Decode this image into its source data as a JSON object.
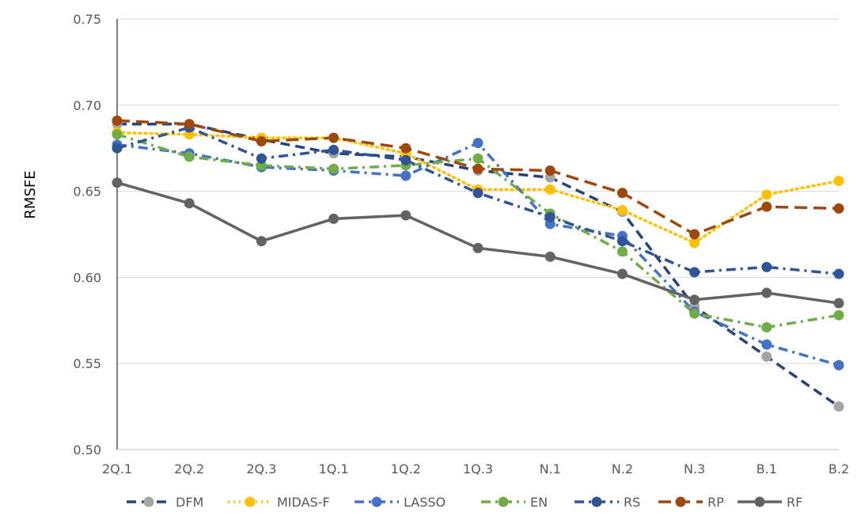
{
  "chart_data": {
    "type": "line",
    "title": "",
    "xlabel": "",
    "ylabel": "RMSFE",
    "categories": [
      "2Q.1",
      "2Q.2",
      "2Q.3",
      "1Q.1",
      "1Q.2",
      "1Q.3",
      "N.1",
      "N.2",
      "N.3",
      "B.1",
      "B.2"
    ],
    "ylim": [
      0.5,
      0.75
    ],
    "yticks": [
      "0.50",
      "0.55",
      "0.60",
      "0.65",
      "0.70",
      "0.75"
    ],
    "grid": "horizontal",
    "legend": "bottom",
    "series": [
      {
        "name": "DFM",
        "color": "#A5A5A5",
        "line_color": "#264478",
        "dash": "dashed",
        "marker_color": "#A5A5A5",
        "values": [
          0.689,
          0.689,
          0.68,
          0.672,
          0.67,
          0.662,
          0.658,
          0.638,
          0.583,
          0.554,
          0.525
        ]
      },
      {
        "name": "MIDAS-F",
        "color": "#FFC000",
        "line_color": "#FFC000",
        "dash": "dotted",
        "marker_color": "#FFC000",
        "values": [
          0.684,
          0.683,
          0.681,
          0.681,
          0.672,
          0.651,
          0.651,
          0.639,
          0.62,
          0.648,
          0.656
        ]
      },
      {
        "name": "LASSO",
        "color": "#4472C4",
        "line_color": "#4472C4",
        "dash": "dashdot",
        "marker_color": "#4472C4",
        "values": [
          0.677,
          0.672,
          0.664,
          0.662,
          0.659,
          0.678,
          0.631,
          0.624,
          0.58,
          0.561,
          0.549
        ]
      },
      {
        "name": "EN",
        "color": "#70AD47",
        "line_color": "#70AD47",
        "dash": "dashdot",
        "marker_color": "#70AD47",
        "values": [
          0.683,
          0.67,
          0.665,
          0.663,
          0.665,
          0.669,
          0.637,
          0.615,
          0.579,
          0.571,
          0.578
        ]
      },
      {
        "name": "RS",
        "color": "#2F5597",
        "line_color": "#2F5597",
        "dash": "dashdot",
        "marker_color": "#2F5597",
        "values": [
          0.675,
          0.687,
          0.669,
          0.674,
          0.668,
          0.649,
          0.635,
          0.621,
          0.603,
          0.606,
          0.602
        ]
      },
      {
        "name": "RP",
        "color": "#9E480E",
        "line_color": "#9E480E",
        "dash": "longdash",
        "marker_color": "#9E480E",
        "values": [
          0.691,
          0.689,
          0.679,
          0.681,
          0.675,
          0.663,
          0.662,
          0.649,
          0.625,
          0.641,
          0.64
        ]
      },
      {
        "name": "RF",
        "color": "#636363",
        "line_color": "#636363",
        "dash": "solid",
        "marker_color": "#636363",
        "values": [
          0.655,
          0.643,
          0.621,
          0.634,
          0.636,
          0.617,
          0.612,
          0.602,
          0.587,
          0.591,
          0.585
        ]
      }
    ]
  }
}
